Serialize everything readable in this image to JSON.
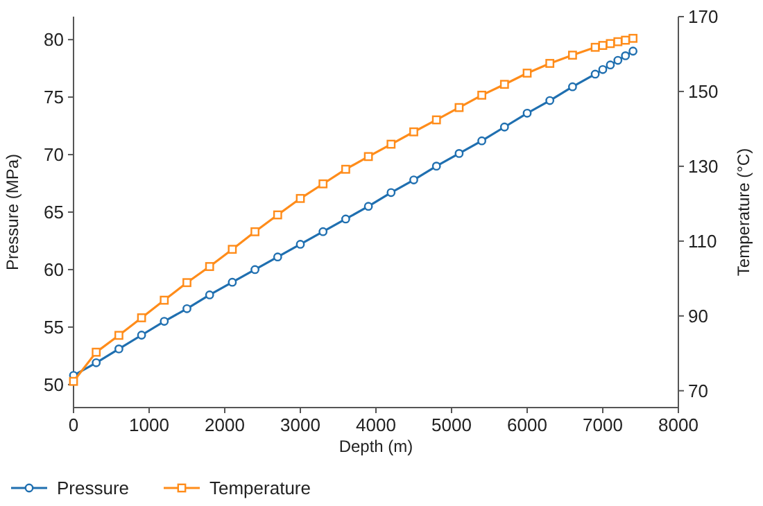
{
  "chart_data": {
    "type": "line",
    "xlabel": "Depth (m)",
    "ylabel": "Pressure (MPa)",
    "y2label": "Temperature (°C)",
    "x": [
      0,
      300,
      600,
      900,
      1200,
      1500,
      1800,
      2100,
      2400,
      2700,
      3000,
      3300,
      3600,
      3900,
      4200,
      4500,
      4800,
      5100,
      5400,
      5700,
      6000,
      6300,
      6600,
      6900,
      7000,
      7100,
      7200,
      7300,
      7400
    ],
    "xlim": [
      0,
      8000
    ],
    "xticks": [
      0,
      1000,
      2000,
      3000,
      4000,
      5000,
      6000,
      7000,
      8000
    ],
    "ylim": [
      48,
      82
    ],
    "yticks": [
      50,
      55,
      60,
      65,
      70,
      75,
      80
    ],
    "y2lim": [
      65.5,
      170
    ],
    "y2ticks": [
      70,
      90,
      110,
      130,
      150,
      170
    ],
    "series": [
      {
        "name": "Pressure",
        "color": "#1f6fb0",
        "marker": "circle",
        "values": [
          50.8,
          51.9,
          53.1,
          54.3,
          55.5,
          56.6,
          57.8,
          58.9,
          60.0,
          61.1,
          62.2,
          63.3,
          64.4,
          65.5,
          66.7,
          67.8,
          69.0,
          70.1,
          71.2,
          72.4,
          73.6,
          74.7,
          75.9,
          77.0,
          77.4,
          77.8,
          78.2,
          78.6,
          79.0
        ]
      },
      {
        "name": "Temperature",
        "color": "#ff8c1a",
        "marker": "square",
        "axis": "y2",
        "values": [
          72.5,
          80.3,
          84.8,
          89.5,
          94.2,
          98.9,
          103.2,
          107.8,
          112.5,
          117.0,
          121.4,
          125.3,
          129.2,
          132.6,
          135.9,
          139.2,
          142.4,
          145.7,
          149.0,
          151.9,
          154.9,
          157.5,
          159.7,
          161.8,
          162.3,
          162.8,
          163.3,
          163.7,
          164.2
        ]
      }
    ],
    "grid": false,
    "legend": "bottom"
  }
}
